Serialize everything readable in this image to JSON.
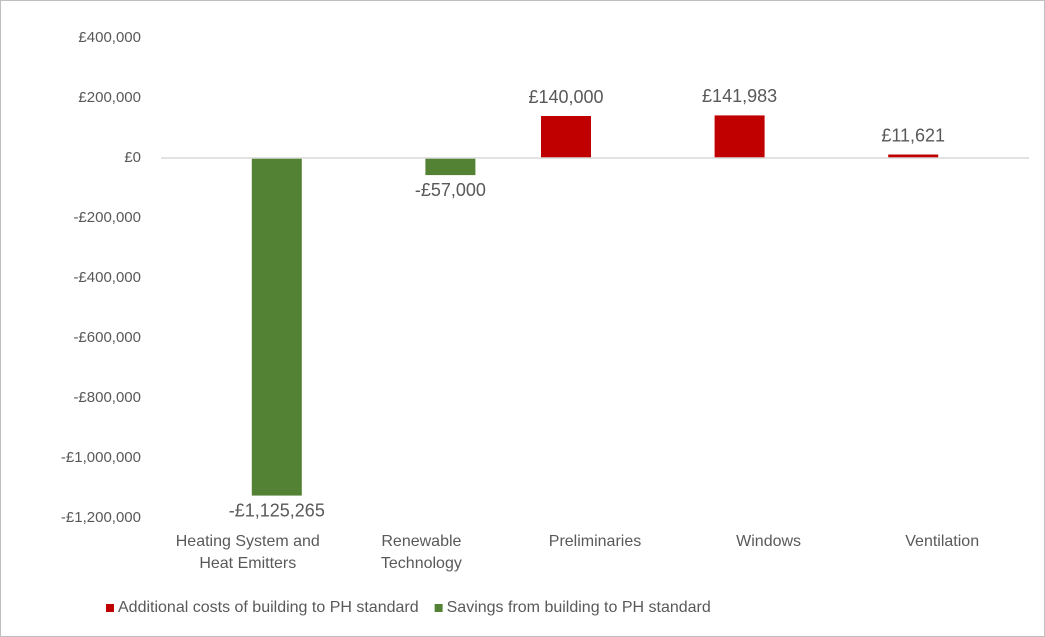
{
  "chart_data": {
    "type": "bar",
    "categories": [
      "Heating System and Heat Emitters",
      "Renewable Technology",
      "Preliminaries",
      "Windows",
      "Ventilation"
    ],
    "series": [
      {
        "name": "Additional costs of building to PH standard",
        "color": "#c00000",
        "values": [
          null,
          null,
          140000,
          141983,
          11621
        ],
        "value_labels": [
          null,
          null,
          "£140,000",
          "£141,983",
          "£11,621"
        ]
      },
      {
        "name": "Savings from building to PH standard",
        "color": "#548235",
        "values": [
          -1125265,
          -57000,
          null,
          null,
          null
        ],
        "value_labels": [
          "-£1,125,265",
          "-£57,000",
          null,
          null,
          null
        ]
      }
    ],
    "ylim": [
      -1200000,
      400000
    ],
    "yticks": [
      {
        "value": -1200000,
        "label": "-£1,200,000"
      },
      {
        "value": -1000000,
        "label": "-£1,000,000"
      },
      {
        "value": -800000,
        "label": "-£800,000"
      },
      {
        "value": -600000,
        "label": "-£600,000"
      },
      {
        "value": -400000,
        "label": "-£400,000"
      },
      {
        "value": -200000,
        "label": "-£200,000"
      },
      {
        "value": 0,
        "label": "£0"
      },
      {
        "value": 200000,
        "label": "£200,000"
      },
      {
        "value": 400000,
        "label": "£400,000"
      }
    ],
    "grid": false,
    "legend": "bottom"
  }
}
